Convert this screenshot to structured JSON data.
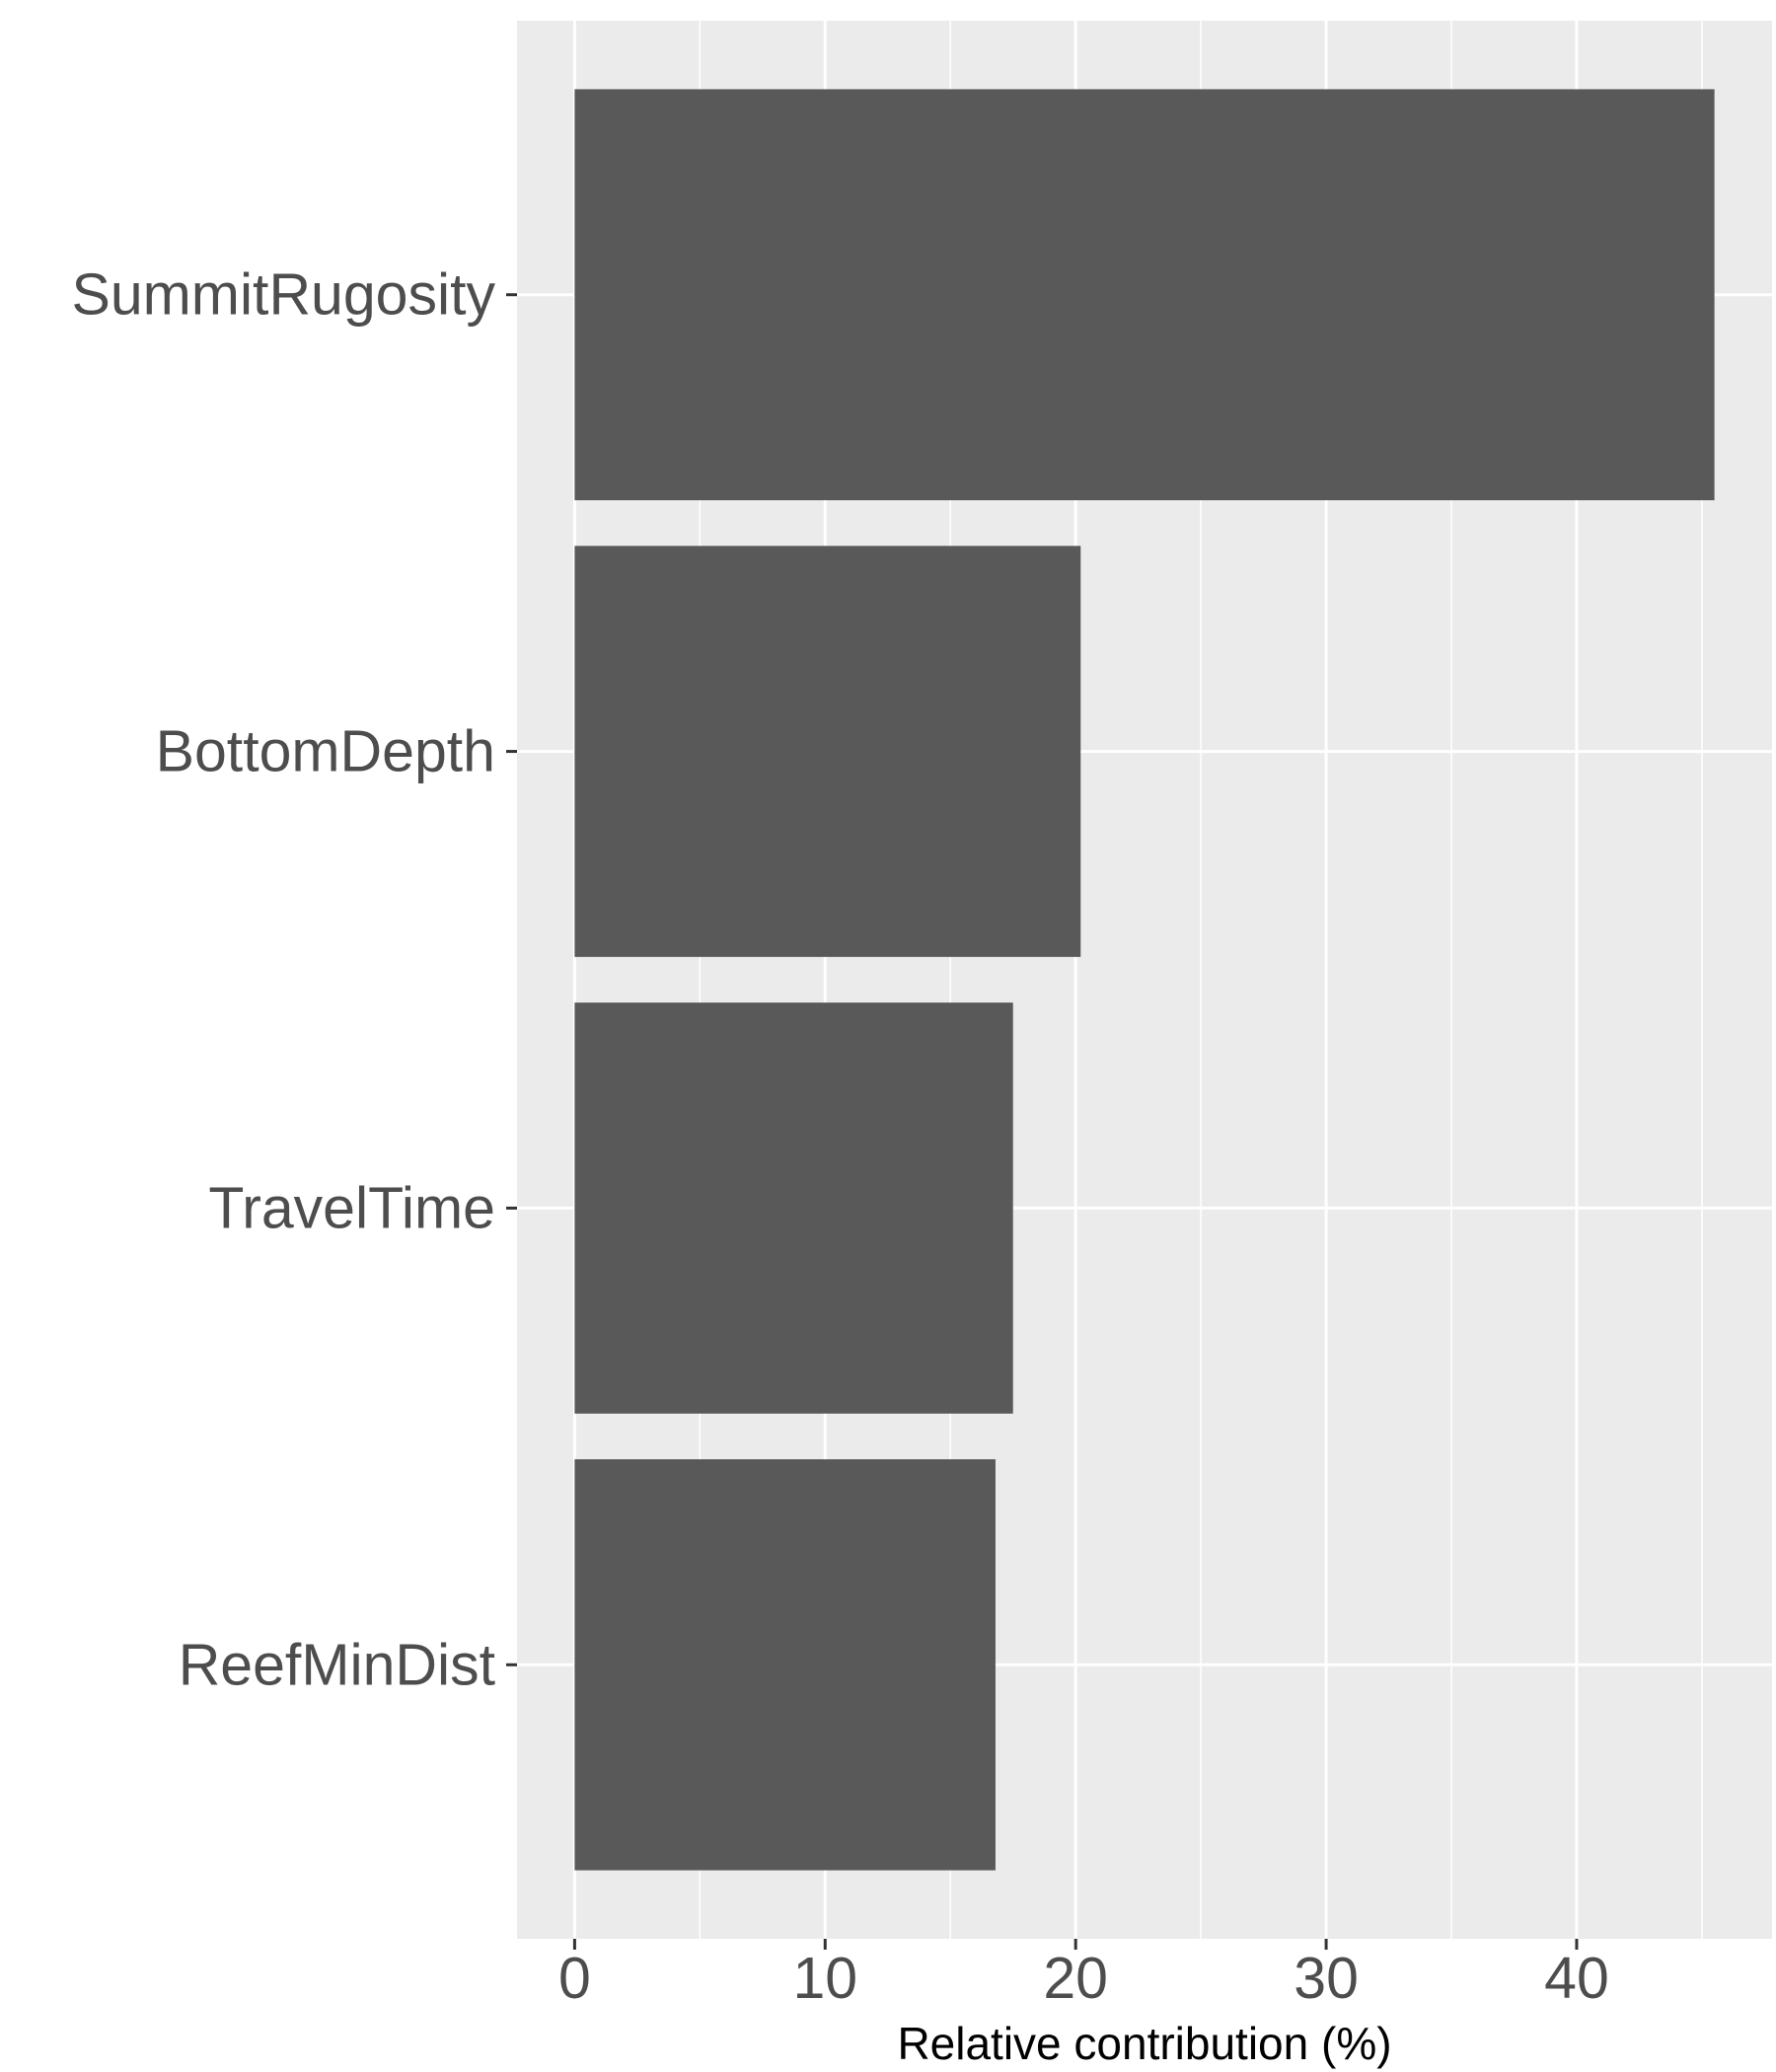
{
  "chart_data": {
    "type": "bar",
    "orientation": "horizontal",
    "categories": [
      "SummitRugosity",
      "BottomDepth",
      "TravelTime",
      "ReefMinDist"
    ],
    "values": [
      45.5,
      20.2,
      17.5,
      16.8
    ],
    "title": "",
    "xlabel": "Relative contribution (%)",
    "ylabel": "",
    "xlim": [
      -2.3,
      47.8
    ],
    "xticks": [
      0,
      10,
      20,
      30,
      40
    ],
    "xtick_labels": [
      "0",
      "10",
      "20",
      "30",
      "40"
    ],
    "grid": true,
    "panel_background": "#ebebeb",
    "bar_color": "#595959",
    "grid_color": "#ffffff",
    "text_color": "#4d4d4d"
  }
}
